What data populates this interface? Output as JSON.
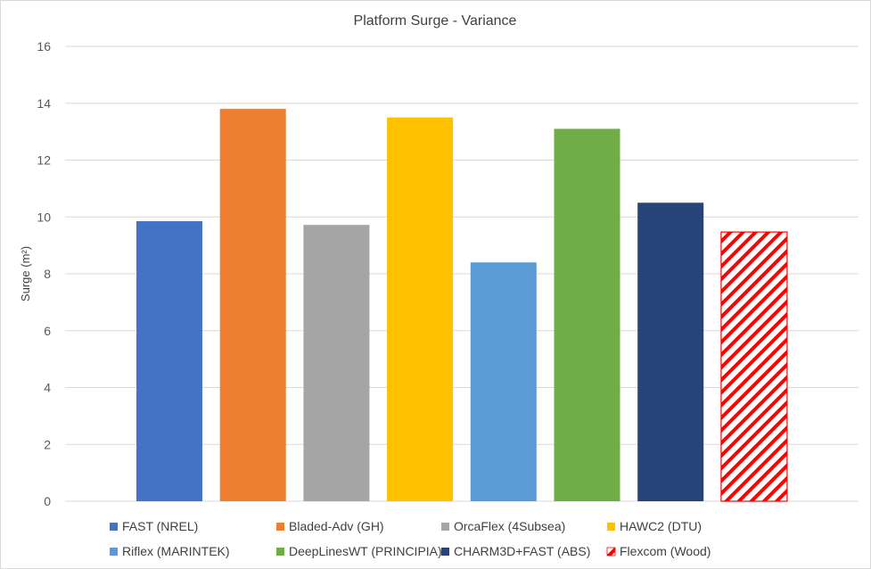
{
  "chart_data": {
    "type": "bar",
    "title": "Platform Surge - Variance",
    "ylabel": "Surge (m²)",
    "xlabel": "",
    "ylim": [
      0,
      16
    ],
    "yticks": [
      "0",
      "2",
      "4",
      "6",
      "8",
      "10",
      "12",
      "14",
      "16"
    ],
    "grid": true,
    "legend_position": "bottom",
    "series": [
      {
        "name": "FAST (NREL)",
        "value": 9.85,
        "color": "#4472C4",
        "pattern": "solid"
      },
      {
        "name": "Bladed-Adv (GH)",
        "value": 13.8,
        "color": "#ED7D31",
        "pattern": "solid"
      },
      {
        "name": "OrcaFlex (4Subsea)",
        "value": 9.72,
        "color": "#A5A5A5",
        "pattern": "solid"
      },
      {
        "name": "HAWC2 (DTU)",
        "value": 13.5,
        "color": "#FFC000",
        "pattern": "solid"
      },
      {
        "name": "Riflex (MARINTEK)",
        "value": 8.4,
        "color": "#5B9BD5",
        "pattern": "solid"
      },
      {
        "name": "DeepLinesWT (PRINCIPIA)",
        "value": 13.1,
        "color": "#70AD47",
        "pattern": "solid"
      },
      {
        "name": "CHARM3D+FAST (ABS)",
        "value": 10.5,
        "color": "#264478",
        "pattern": "solid"
      },
      {
        "name": "Flexcom (Wood)",
        "value": 9.47,
        "color": "#FF0000",
        "pattern": "diagonal-hatch"
      }
    ]
  }
}
